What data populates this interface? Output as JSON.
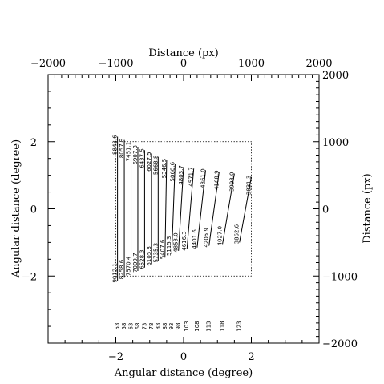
{
  "chart_data": {
    "type": "line",
    "xlabel": "Angular distance (degree)",
    "ylabel": "Angular distance (degree)",
    "top_xlabel": "Distance (px)",
    "right_ylabel": "Distance (px)",
    "xlim": [
      -4,
      4
    ],
    "ylim": [
      -4,
      4
    ],
    "px_lim": [
      -2000,
      2000
    ],
    "x_ticks": [
      -2,
      0,
      2
    ],
    "x_tick_labels": [
      "−2",
      "0",
      "2"
    ],
    "y_ticks": [
      -2,
      0,
      2
    ],
    "y_tick_labels": [
      "−2",
      "0",
      "2"
    ],
    "px_ticks": [
      -2000,
      -1000,
      0,
      1000,
      2000
    ],
    "top_tick_labels": [
      "−2000",
      "−1000",
      "0",
      "1000",
      "2000"
    ],
    "right_tick_labels": [
      "−2000",
      "−1000",
      "0",
      "1000",
      "2000"
    ],
    "box": {
      "x": [
        -2,
        2
      ],
      "y": [
        -2,
        2
      ]
    },
    "series": [
      {
        "x0": -1.95,
        "y0": -2.15,
        "x1": -1.95,
        "y1": 2.15,
        "bottom_label": "9012.1",
        "top_label": "8843.6",
        "column_label": "53"
      },
      {
        "x0": -1.75,
        "y0": -2.05,
        "x1": -1.75,
        "y1": 2.05,
        "bottom_label": "8258.6",
        "top_label": "8057.9",
        "column_label": "58"
      },
      {
        "x0": -1.55,
        "y0": -1.95,
        "x1": -1.55,
        "y1": 1.95,
        "bottom_label": "7570.4",
        "top_label": "7451.1",
        "column_label": "63"
      },
      {
        "x0": -1.35,
        "y0": -1.85,
        "x1": -1.35,
        "y1": 1.85,
        "bottom_label": "7009.7",
        "top_label": "6907.3",
        "column_label": "68"
      },
      {
        "x0": -1.15,
        "y0": -1.75,
        "x1": -1.15,
        "y1": 1.75,
        "bottom_label": "6528.3",
        "top_label": "6437.5",
        "column_label": "73"
      },
      {
        "x0": -0.95,
        "y0": -1.65,
        "x1": -0.95,
        "y1": 1.65,
        "bottom_label": "6105.3",
        "top_label": "6027.5",
        "column_label": "78"
      },
      {
        "x0": -0.75,
        "y0": -1.55,
        "x1": -0.75,
        "y1": 1.55,
        "bottom_label": "5735.3",
        "top_label": "5668.8",
        "column_label": "83"
      },
      {
        "x0": -0.55,
        "y0": -1.45,
        "x1": -0.5,
        "y1": 1.45,
        "bottom_label": "5407.6",
        "top_label": "5346.5",
        "column_label": "88"
      },
      {
        "x0": -0.35,
        "y0": -1.35,
        "x1": -0.25,
        "y1": 1.35,
        "bottom_label": "5115.3",
        "top_label": "5060.6",
        "column_label": "93"
      },
      {
        "x0": -0.15,
        "y0": -1.25,
        "x1": 0.0,
        "y1": 1.25,
        "bottom_label": "4853.0",
        "top_label": "4803.7",
        "column_label": "98"
      },
      {
        "x0": 0.1,
        "y0": -1.2,
        "x1": 0.3,
        "y1": 1.2,
        "bottom_label": "4616.3",
        "top_label": "4571.7",
        "column_label": "103"
      },
      {
        "x0": 0.4,
        "y0": -1.15,
        "x1": 0.65,
        "y1": 1.15,
        "bottom_label": "4401.6",
        "top_label": "4361.0",
        "column_label": "108"
      },
      {
        "x0": 0.75,
        "y0": -1.1,
        "x1": 1.05,
        "y1": 1.1,
        "bottom_label": "4205.9",
        "top_label": "4168.9",
        "column_label": "113"
      },
      {
        "x0": 1.15,
        "y0": -1.05,
        "x1": 1.5,
        "y1": 1.05,
        "bottom_label": "4027.0",
        "top_label": "3993.0",
        "column_label": "118"
      },
      {
        "x0": 1.65,
        "y0": -1.0,
        "x1": 2.0,
        "y1": 0.95,
        "bottom_label": "3862.6",
        "top_label": "3831.3",
        "column_label": "123"
      }
    ],
    "grid": false
  }
}
